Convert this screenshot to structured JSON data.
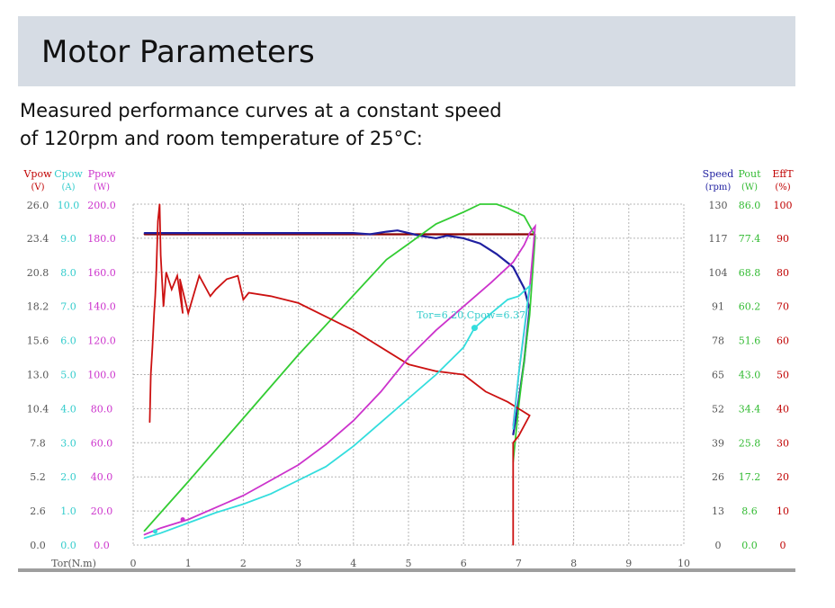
{
  "header": {
    "title": "Motor Parameters",
    "subtitle_line1": "Measured performance curves at a constant speed",
    "subtitle_line2": "of 120rpm and room temperature of 25°C:"
  },
  "chart_data": {
    "type": "line",
    "xlabel": "Tor(N.m)",
    "xlim": [
      0,
      10
    ],
    "x_ticks": [
      "0",
      "1",
      "2",
      "3",
      "4",
      "5",
      "6",
      "7",
      "8",
      "9",
      "10"
    ],
    "grid": true,
    "left_axes": [
      {
        "name": "Vpow",
        "unit": "(V)",
        "color": "#c00000",
        "ticks": [
          "0.0",
          "2.6",
          "5.2",
          "7.8",
          "10.4",
          "13.0",
          "15.6",
          "18.2",
          "20.8",
          "23.4",
          "26.0"
        ]
      },
      {
        "name": "Cpow",
        "unit": "(A)",
        "color": "#33cccc",
        "ticks": [
          "0.0",
          "1.0",
          "2.0",
          "3.0",
          "4.0",
          "5.0",
          "6.0",
          "7.0",
          "8.0",
          "9.0",
          "10.0"
        ]
      },
      {
        "name": "Ppow",
        "unit": "(W)",
        "color": "#cc33cc",
        "ticks": [
          "0.0",
          "20.0",
          "40.0",
          "60.0",
          "80.0",
          "100.0",
          "120.0",
          "140.0",
          "160.0",
          "180.0",
          "200.0"
        ]
      }
    ],
    "right_axes": [
      {
        "name": "Speed",
        "unit": "(rpm)",
        "color": "#1f1fa0",
        "ticks": [
          "0",
          "13",
          "26",
          "39",
          "52",
          "65",
          "78",
          "91",
          "104",
          "117",
          "130"
        ]
      },
      {
        "name": "Pout",
        "unit": "(W)",
        "color": "#33bb33",
        "ticks": [
          "0.0",
          "8.6",
          "17.2",
          "25.8",
          "34.4",
          "43.0",
          "51.6",
          "60.2",
          "68.8",
          "77.4",
          "86.0"
        ]
      },
      {
        "name": "EffT",
        "unit": "(%)",
        "color": "#c00000",
        "ticks": [
          "0",
          "10",
          "20",
          "30",
          "40",
          "50",
          "60",
          "70",
          "80",
          "90",
          "100"
        ]
      }
    ],
    "annotation": "Tor=6.20,Cpow=6.37",
    "series": [
      {
        "name": "Vpow",
        "color": "#8b0000",
        "axis": "Vpow (V)",
        "x": [
          0.2,
          7.3
        ],
        "y": [
          23.7,
          23.7
        ]
      },
      {
        "name": "Speed",
        "color": "#1f1fa0",
        "axis": "Speed (rpm)",
        "x": [
          0.2,
          1.0,
          2.0,
          3.0,
          4.0,
          4.3,
          4.6,
          4.8,
          5.0,
          5.2,
          5.5,
          5.7,
          6.0,
          6.3,
          6.6,
          6.9,
          7.1,
          7.2,
          7.1,
          7.0,
          6.9
        ],
        "y": [
          119,
          119,
          119,
          119,
          119,
          118.5,
          119.5,
          120,
          119,
          118,
          117,
          118,
          117,
          115,
          111,
          106,
          98,
          90,
          70,
          55,
          42
        ]
      },
      {
        "name": "Pout",
        "color": "#33cc33",
        "axis": "Pout (W)",
        "x": [
          0.2,
          1.0,
          2.0,
          3.0,
          4.0,
          4.6,
          5.0,
          5.5,
          6.0,
          6.3,
          6.6,
          6.8,
          7.1,
          7.3,
          7.2,
          7.0,
          6.9
        ],
        "y": [
          3.5,
          16,
          32,
          48,
          63,
          72,
          76,
          81,
          84,
          86,
          86,
          85,
          83,
          78,
          58,
          35,
          21
        ]
      },
      {
        "name": "EffT",
        "color": "#cc1111",
        "axis": "EffT (%)",
        "x": [
          0.3,
          0.32,
          0.35,
          0.38,
          0.4,
          0.42,
          0.45,
          0.48,
          0.5,
          0.55,
          0.6,
          0.7,
          0.8,
          0.9,
          0.85,
          1.0,
          1.2,
          1.4,
          1.5,
          1.7,
          1.9,
          2.0,
          2.1,
          2.5,
          3.0,
          3.5,
          4.0,
          4.5,
          5.0,
          5.5,
          6.0,
          6.4,
          6.8,
          7.0,
          7.2,
          7.0,
          6.9,
          6.9
        ],
        "y": [
          36,
          50,
          58,
          68,
          73,
          80,
          95,
          100,
          85,
          70,
          80,
          75,
          79,
          68,
          78,
          68,
          79,
          73,
          75,
          78,
          79,
          72,
          74,
          73,
          71,
          67,
          63,
          58,
          53,
          51,
          50,
          45,
          42,
          40,
          38,
          32,
          30,
          0
        ]
      },
      {
        "name": "Ppow",
        "color": "#cc33cc",
        "axis": "Ppow (W)",
        "x": [
          0.2,
          0.5,
          1.0,
          1.5,
          2.0,
          2.5,
          3.0,
          3.5,
          4.0,
          4.5,
          5.0,
          5.5,
          6.0,
          6.5,
          6.9,
          7.1,
          7.2,
          7.3,
          7.2,
          7.0,
          6.9
        ],
        "y": [
          6,
          10,
          15,
          22,
          29,
          38,
          47,
          59,
          73,
          90,
          110,
          126,
          140,
          154,
          166,
          176,
          183,
          187,
          150,
          100,
          70
        ]
      },
      {
        "name": "Cpow",
        "color": "#33dddd",
        "axis": "Cpow (A)",
        "x": [
          0.2,
          0.5,
          1.0,
          1.5,
          2.0,
          2.5,
          3.0,
          3.5,
          4.0,
          4.5,
          5.0,
          5.5,
          6.0,
          6.2,
          6.5,
          6.8,
          7.0,
          7.2,
          7.0,
          6.9
        ],
        "y": [
          0.2,
          0.35,
          0.65,
          0.95,
          1.2,
          1.5,
          1.9,
          2.3,
          2.9,
          3.6,
          4.3,
          5.0,
          5.8,
          6.37,
          6.8,
          7.2,
          7.3,
          7.6,
          5.0,
          3.4
        ]
      }
    ]
  }
}
